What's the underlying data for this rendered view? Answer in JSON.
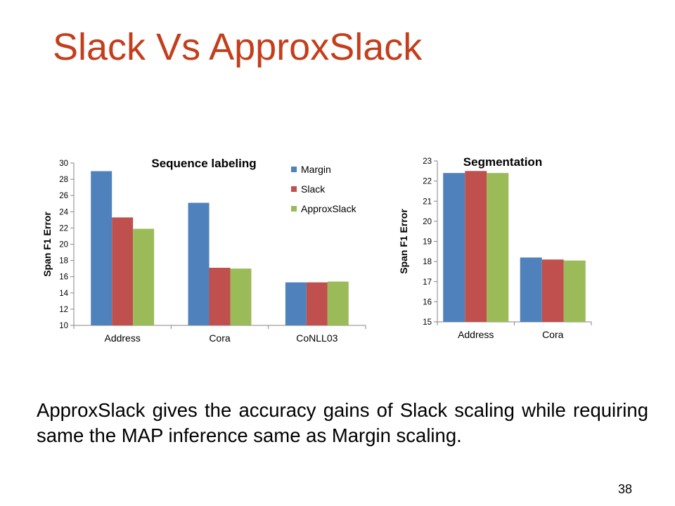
{
  "slide": {
    "title": "Slack Vs ApproxSlack",
    "body_text": "ApproxSlack gives the accuracy gains of Slack scaling while requiring same the MAP inference same as Margin scaling.",
    "page_number": "38"
  },
  "colors": {
    "title": "#c43e1c",
    "Margin": "#4f81bd",
    "Slack": "#c0504d",
    "ApproxSlack": "#9bbb59"
  },
  "chart_data": [
    {
      "type": "bar",
      "title": "Sequence labeling",
      "xlabel": "",
      "ylabel": "Span F1 Error",
      "categories": [
        "Address",
        "Cora",
        "CoNLL03"
      ],
      "series": [
        {
          "name": "Margin",
          "values": [
            29.0,
            25.1,
            15.3
          ]
        },
        {
          "name": "Slack",
          "values": [
            23.3,
            17.1,
            15.3
          ]
        },
        {
          "name": "ApproxSlack",
          "values": [
            21.9,
            17.0,
            15.4
          ]
        }
      ],
      "ylim": [
        10,
        30
      ],
      "yticks": [
        10,
        12,
        14,
        16,
        18,
        20,
        22,
        24,
        26,
        28,
        30
      ],
      "legend": "top-right",
      "grid": false
    },
    {
      "type": "bar",
      "title": "Segmentation",
      "xlabel": "",
      "ylabel": "Span F1 Error",
      "categories": [
        "Address",
        "Cora"
      ],
      "series": [
        {
          "name": "Margin",
          "values": [
            22.4,
            18.2
          ]
        },
        {
          "name": "Slack",
          "values": [
            22.5,
            18.1
          ]
        },
        {
          "name": "ApproxSlack",
          "values": [
            22.4,
            18.05
          ]
        }
      ],
      "ylim": [
        15,
        23
      ],
      "yticks": [
        15,
        16,
        17,
        18,
        19,
        20,
        21,
        22,
        23
      ],
      "legend": "none",
      "grid": false
    }
  ]
}
